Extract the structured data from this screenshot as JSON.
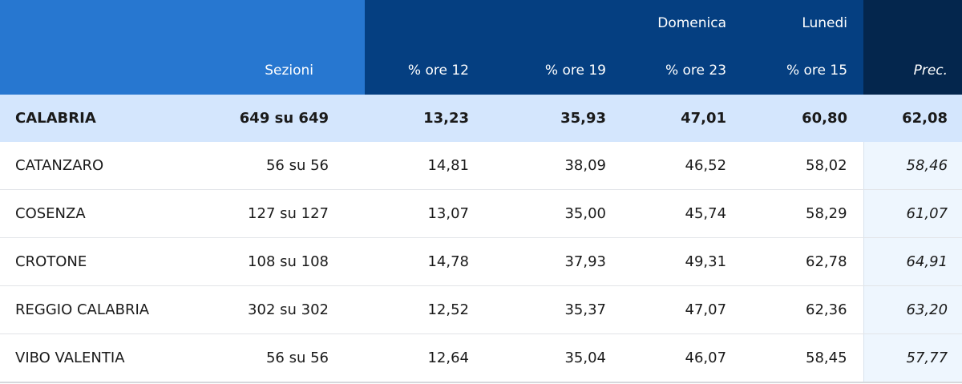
{
  "colors": {
    "header_light": "#2777d0",
    "header_dark": "#053f81",
    "header_prec": "#04264d",
    "total_row_bg": "#d4e6fd",
    "prec_col_bg": "#eef6fe"
  },
  "header": {
    "group_domenica": "Domenica",
    "group_lunedi": "Lunedi",
    "col_sezioni": "Sezioni",
    "col_ore12": "% ore 12",
    "col_ore19": "% ore 19",
    "col_ore23": "% ore 23",
    "col_ore15": "% ore 15",
    "col_prec": "Prec."
  },
  "total": {
    "name": "CALABRIA",
    "sezioni": "649 su 649",
    "ore12": "13,23",
    "ore19": "35,93",
    "ore23": "47,01",
    "ore15": "60,80",
    "prec": "62,08"
  },
  "rows": [
    {
      "name": "CATANZARO",
      "sezioni": "56 su 56",
      "ore12": "14,81",
      "ore19": "38,09",
      "ore23": "46,52",
      "ore15": "58,02",
      "prec": "58,46"
    },
    {
      "name": "COSENZA",
      "sezioni": "127 su 127",
      "ore12": "13,07",
      "ore19": "35,00",
      "ore23": "45,74",
      "ore15": "58,29",
      "prec": "61,07"
    },
    {
      "name": "CROTONE",
      "sezioni": "108 su 108",
      "ore12": "14,78",
      "ore19": "37,93",
      "ore23": "49,31",
      "ore15": "62,78",
      "prec": "64,91"
    },
    {
      "name": "REGGIO CALABRIA",
      "sezioni": "302 su 302",
      "ore12": "12,52",
      "ore19": "35,37",
      "ore23": "47,07",
      "ore15": "62,36",
      "prec": "63,20"
    },
    {
      "name": "VIBO VALENTIA",
      "sezioni": "56 su 56",
      "ore12": "12,64",
      "ore19": "35,04",
      "ore23": "46,07",
      "ore15": "58,45",
      "prec": "57,77"
    }
  ]
}
